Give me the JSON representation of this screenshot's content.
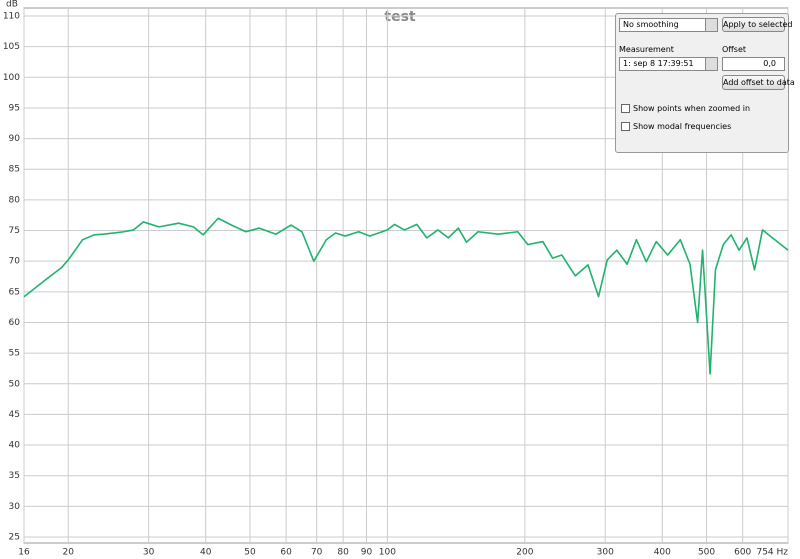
{
  "chart_data": {
    "type": "line",
    "title": "test",
    "y_label": "dB",
    "log_x": true,
    "grid": true,
    "xlim": [
      16,
      754
    ],
    "ylim": [
      25,
      110
    ],
    "xticks": [
      16,
      20,
      30,
      40,
      50,
      60,
      70,
      80,
      90,
      100,
      200,
      300,
      400,
      500,
      600,
      {
        "value": 754,
        "label": "754 Hz"
      }
    ],
    "yticks": [
      25,
      30,
      35,
      40,
      45,
      50,
      55,
      60,
      65,
      70,
      75,
      80,
      85,
      90,
      95,
      100,
      105,
      110
    ],
    "x": [
      16,
      17.8,
      19.3,
      20,
      21.5,
      22.8,
      23.9,
      26.5,
      27.8,
      29.2,
      31.6,
      34.9,
      37.6,
      39.5,
      42.6,
      45.5,
      49,
      52.4,
      57,
      61.5,
      65,
      69,
      73.5,
      77,
      80.8,
      86.5,
      91.5,
      100,
      103.7,
      109,
      116,
      122,
      129,
      136,
      143,
      149,
      158,
      175,
      193,
      203,
      219,
      230,
      241,
      258,
      275,
      290,
      303,
      318,
      335,
      351,
      369,
      388,
      411,
      438,
      460,
      478,
      490,
      509,
      523,
      544,
      566,
      589,
      613,
      637,
      663,
      684,
      754
    ],
    "series": [
      {
        "color": "#1fb36e",
        "values": [
          64.2,
          66.9,
          68.9,
          70.2,
          73.5,
          74.3,
          74.4,
          74.8,
          75.1,
          76.4,
          75.6,
          76.2,
          75.6,
          74.3,
          77.0,
          75.9,
          74.8,
          75.4,
          74.4,
          75.9,
          74.8,
          70.0,
          73.5,
          74.6,
          74.1,
          74.8,
          74.1,
          75.1,
          76.0,
          75.1,
          76.0,
          73.8,
          75.1,
          73.8,
          75.4,
          73.1,
          74.8,
          74.4,
          74.8,
          72.7,
          73.2,
          70.5,
          71.0,
          67.6,
          69.4,
          64.2,
          70.2,
          71.8,
          69.5,
          73.5,
          69.9,
          73.2,
          71.0,
          73.5,
          69.5,
          60.0,
          71.8,
          51.6,
          68.6,
          72.7,
          74.3,
          71.8,
          73.8,
          68.6,
          75.1,
          74.3,
          71.8
        ]
      }
    ]
  },
  "panel": {
    "smoothing": "No  smoothing",
    "apply_button": "Apply to selected",
    "measurement_label": "Measurement",
    "offset_label": "Offset",
    "measurement": "1: sep 8 17:39:51",
    "offset": "0,0",
    "add_offset_button": "Add offset to data",
    "checkboxes": [
      "Show points when zoomed in",
      "Show modal frequencies"
    ]
  }
}
